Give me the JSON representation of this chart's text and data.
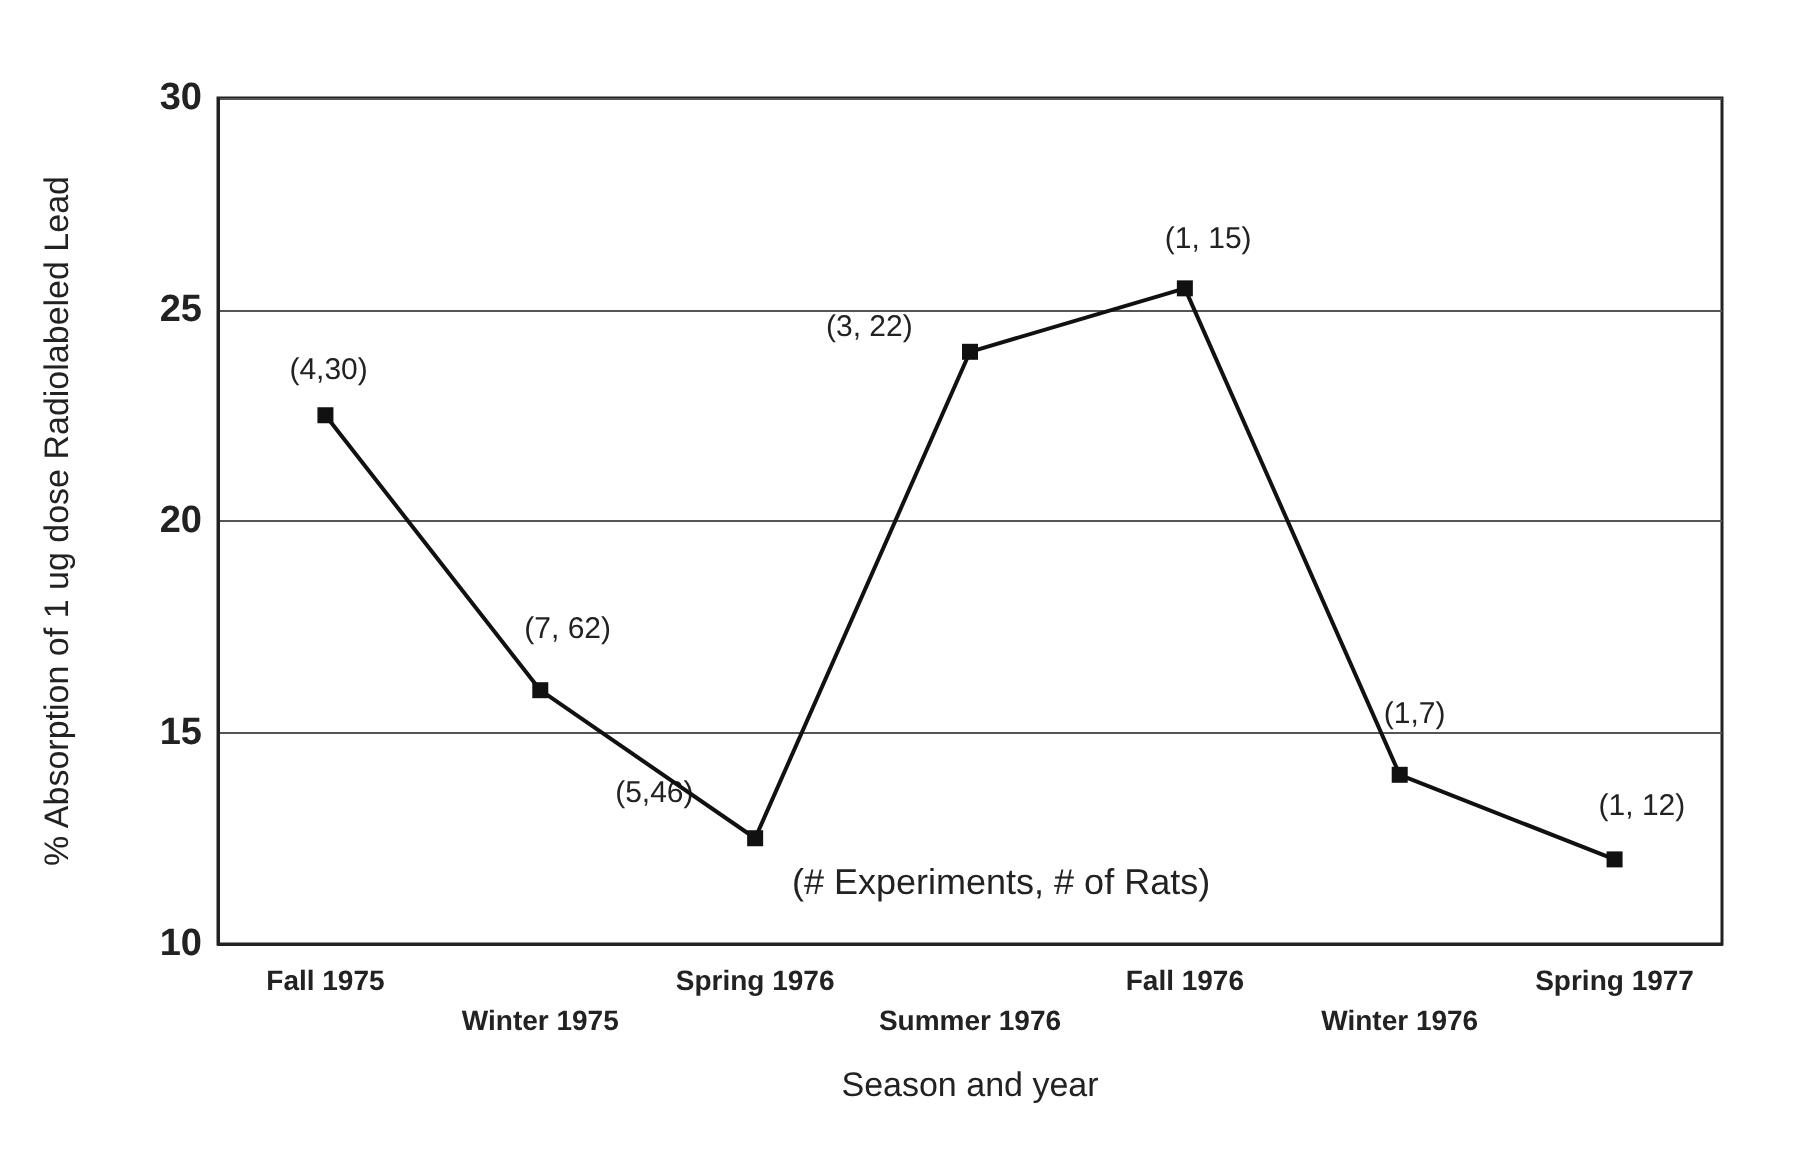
{
  "chart_data": {
    "type": "line",
    "xlabel": "Season and year",
    "ylabel": "% Absorption of 1 ug dose Radiolabeled Lead",
    "categories": [
      "Fall 1975",
      "Winter 1975",
      "Spring 1976",
      "Summer 1976",
      "Fall 1976",
      "Winter 1976",
      "Spring 1977"
    ],
    "series": [
      {
        "color": "#111111",
        "values": [
          22.5,
          16,
          12.5,
          24,
          25.5,
          14,
          12
        ]
      }
    ],
    "ylim": [
      10,
      30
    ],
    "yticks": [
      10,
      15,
      20,
      25,
      30
    ],
    "grid": "y",
    "marker": "square",
    "line_style": "solid",
    "annotations": [
      {
        "text": "(4,30)",
        "x": "Fall 1975",
        "y": 22.5
      },
      {
        "text": "(7, 62)",
        "x": "Winter 1975",
        "y": 16
      },
      {
        "text": "(5,46)",
        "x": "Spring 1976",
        "y": 12.5
      },
      {
        "text": "(3, 22)",
        "x": "Summer 1976",
        "y": 24
      },
      {
        "text": "(1, 15)",
        "x": "Fall 1976",
        "y": 25.5
      },
      {
        "text": "(1,7)",
        "x": "Winter 1976",
        "y": 14
      },
      {
        "text": "(1, 12)",
        "x": "Spring 1977",
        "y": 12
      },
      "(# Experiments, # of Rats)"
    ]
  }
}
